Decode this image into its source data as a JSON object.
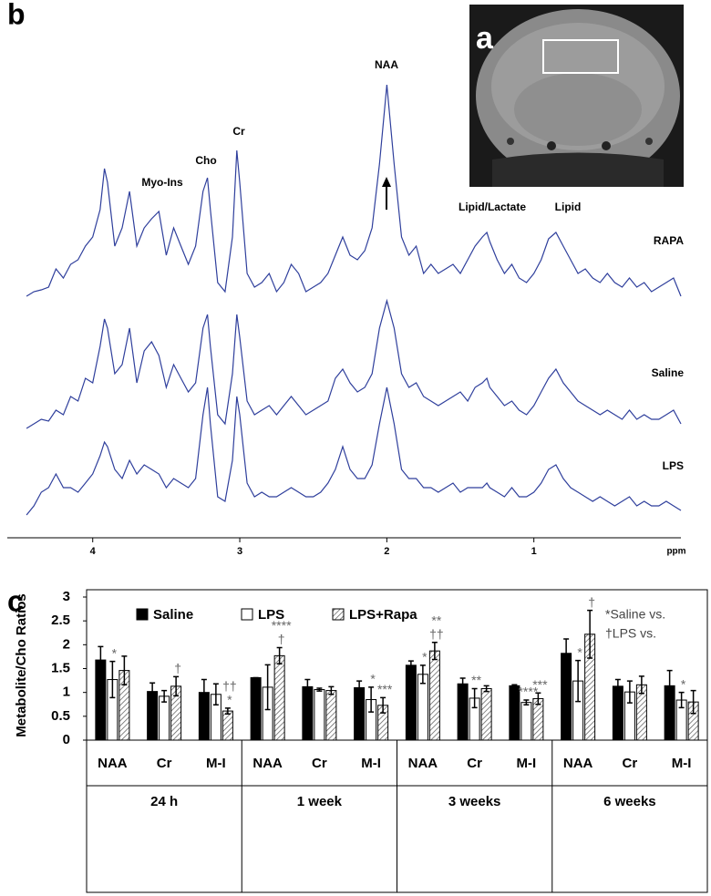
{
  "image": {
    "panel_label": "a"
  },
  "chart_data": [
    {
      "type": "line",
      "panel_label": "b",
      "x_label": "ppm",
      "xlim": [
        4.55,
        0
      ],
      "xticks": [
        4,
        3,
        2,
        1
      ],
      "annotations": [
        "NAA",
        "Cr",
        "Cho",
        "Myo-Ins",
        "Lipid/Lactate",
        "Lipid"
      ],
      "x": [
        4.45,
        4.4,
        4.35,
        4.3,
        4.25,
        4.2,
        4.15,
        4.1,
        4.05,
        4.0,
        3.95,
        3.92,
        3.9,
        3.85,
        3.8,
        3.75,
        3.7,
        3.65,
        3.6,
        3.55,
        3.5,
        3.45,
        3.4,
        3.35,
        3.3,
        3.25,
        3.22,
        3.2,
        3.15,
        3.1,
        3.05,
        3.02,
        3.0,
        2.95,
        2.9,
        2.85,
        2.8,
        2.75,
        2.7,
        2.65,
        2.6,
        2.55,
        2.5,
        2.45,
        2.4,
        2.35,
        2.3,
        2.25,
        2.2,
        2.15,
        2.1,
        2.05,
        2.0,
        1.95,
        1.9,
        1.85,
        1.8,
        1.75,
        1.7,
        1.65,
        1.6,
        1.55,
        1.5,
        1.45,
        1.4,
        1.35,
        1.32,
        1.3,
        1.25,
        1.2,
        1.15,
        1.1,
        1.05,
        1.0,
        0.95,
        0.9,
        0.85,
        0.8,
        0.75,
        0.7,
        0.65,
        0.6,
        0.55,
        0.5,
        0.45,
        0.4,
        0.35,
        0.3,
        0.25,
        0.2,
        0.15,
        0.1,
        0.05,
        0.0
      ],
      "series": [
        {
          "name": "RAPA",
          "color": "#2f3f9c",
          "values": [
            5,
            10,
            12,
            15,
            35,
            25,
            40,
            45,
            60,
            70,
            100,
            145,
            130,
            60,
            80,
            120,
            60,
            80,
            90,
            98,
            50,
            80,
            60,
            40,
            60,
            120,
            135,
            100,
            20,
            10,
            70,
            165,
            130,
            30,
            15,
            20,
            30,
            10,
            20,
            40,
            30,
            10,
            15,
            20,
            30,
            50,
            70,
            50,
            45,
            55,
            80,
            150,
            237,
            150,
            70,
            50,
            60,
            30,
            40,
            30,
            35,
            40,
            30,
            45,
            60,
            70,
            75,
            65,
            45,
            30,
            40,
            25,
            20,
            30,
            45,
            68,
            75,
            60,
            45,
            30,
            35,
            25,
            20,
            30,
            20,
            15,
            25,
            15,
            20,
            10,
            15,
            20,
            25,
            5
          ]
        },
        {
          "name": "Saline",
          "color": "#2f3f9c",
          "values": [
            0,
            5,
            10,
            8,
            20,
            15,
            35,
            30,
            55,
            50,
            90,
            120,
            110,
            60,
            70,
            110,
            50,
            85,
            95,
            80,
            45,
            70,
            55,
            40,
            50,
            110,
            125,
            90,
            15,
            5,
            60,
            125,
            100,
            30,
            15,
            20,
            25,
            15,
            25,
            35,
            25,
            15,
            20,
            25,
            30,
            55,
            65,
            50,
            40,
            45,
            60,
            110,
            140,
            110,
            60,
            45,
            50,
            35,
            30,
            25,
            30,
            35,
            40,
            30,
            45,
            50,
            55,
            45,
            35,
            25,
            30,
            20,
            15,
            25,
            40,
            55,
            65,
            50,
            40,
            30,
            25,
            20,
            15,
            20,
            15,
            10,
            20,
            10,
            15,
            10,
            10,
            15,
            20,
            5
          ]
        },
        {
          "name": "LPS",
          "color": "#2f3f9c",
          "values": [
            0,
            10,
            25,
            30,
            45,
            30,
            30,
            25,
            35,
            45,
            65,
            80,
            75,
            50,
            40,
            60,
            45,
            55,
            50,
            45,
            30,
            40,
            35,
            30,
            40,
            110,
            140,
            100,
            20,
            15,
            60,
            130,
            110,
            35,
            20,
            25,
            20,
            20,
            25,
            30,
            25,
            20,
            20,
            25,
            35,
            50,
            75,
            50,
            40,
            40,
            55,
            100,
            140,
            100,
            50,
            40,
            40,
            30,
            30,
            25,
            30,
            35,
            25,
            30,
            30,
            30,
            35,
            30,
            25,
            20,
            30,
            20,
            20,
            25,
            35,
            50,
            55,
            40,
            30,
            25,
            20,
            15,
            20,
            15,
            10,
            15,
            20,
            10,
            15,
            10,
            10,
            15,
            10,
            5
          ]
        }
      ]
    },
    {
      "type": "bar",
      "panel_label": "c",
      "y_label": "Metabolite/Cho Ratios",
      "categories": [
        "NAA",
        "Cr",
        "M-I",
        "NAA",
        "Cr",
        "M-I",
        "NAA",
        "Cr",
        "M-I",
        "NAA",
        "Cr",
        "M-I"
      ],
      "groups": [
        "24 h",
        "1 week",
        "3 weeks",
        "6 weeks"
      ],
      "ylim": [
        0,
        3
      ],
      "yticks": [
        0,
        0.5,
        1,
        1.5,
        2,
        2.5,
        3
      ],
      "notes": [
        "*Saline vs.",
        "†LPS vs."
      ],
      "series": [
        {
          "name": "Saline",
          "color": "#000000",
          "hatch": false,
          "values": [
            1.68,
            1.02,
            1.0,
            1.31,
            1.12,
            1.1,
            1.57,
            1.18,
            1.14,
            1.82,
            1.13,
            1.14
          ],
          "errors": [
            0.28,
            0.18,
            0.27,
            0.0,
            0.15,
            0.14,
            0.09,
            0.12,
            0.02,
            0.3,
            0.14,
            0.32
          ],
          "significance": [
            null,
            null,
            null,
            null,
            null,
            null,
            null,
            null,
            null,
            null,
            null,
            null
          ]
        },
        {
          "name": "LPS",
          "color": "#ffffff",
          "hatch": false,
          "values": [
            1.27,
            0.92,
            0.96,
            1.11,
            1.06,
            0.85,
            1.38,
            0.88,
            0.79,
            1.24,
            1.01,
            0.84
          ],
          "errors": [
            0.38,
            0.12,
            0.22,
            0.47,
            0.03,
            0.26,
            0.19,
            0.2,
            0.05,
            0.43,
            0.23,
            0.16
          ],
          "significance": [
            [
              "*"
            ],
            null,
            null,
            null,
            null,
            [
              "*"
            ],
            [
              "*"
            ],
            [
              "**"
            ],
            [
              "****"
            ],
            [
              "*"
            ],
            null,
            [
              "*"
            ]
          ]
        },
        {
          "name": "LPS+Rapa",
          "color": "#ffffff",
          "hatch": true,
          "values": [
            1.46,
            1.13,
            0.61,
            1.77,
            1.04,
            0.73,
            1.87,
            1.08,
            0.87,
            2.22,
            1.16,
            0.8
          ],
          "errors": [
            0.3,
            0.2,
            0.06,
            0.17,
            0.08,
            0.16,
            0.18,
            0.06,
            0.12,
            0.5,
            0.18,
            0.24
          ],
          "significance": [
            null,
            [
              "†"
            ],
            [
              "††",
              "*"
            ],
            [
              "****",
              "†"
            ],
            null,
            [
              "***"
            ],
            [
              "**",
              "††"
            ],
            null,
            [
              "***"
            ],
            [
              "†"
            ],
            null,
            null
          ]
        }
      ]
    }
  ]
}
